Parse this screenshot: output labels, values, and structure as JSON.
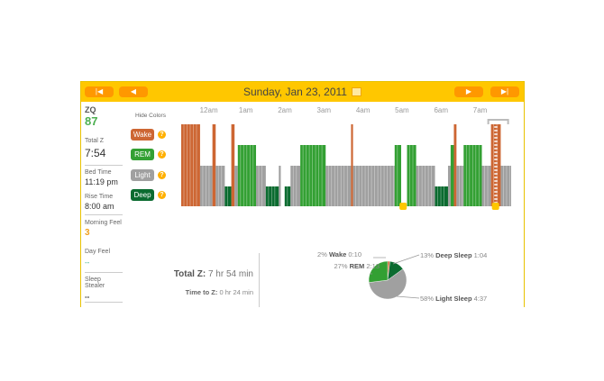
{
  "nav": {
    "first": "|◀",
    "prev": "◀",
    "next": "▶",
    "last": "▶|",
    "date": "Sunday, Jan 23, 2011"
  },
  "sidebar": {
    "zq_label": "ZQ",
    "zq": "87",
    "total_label": "Total Z",
    "total": "7:54",
    "bed_label": "Bed Time",
    "bed": "11:19 pm",
    "rise_label": "Rise Time",
    "rise": "8:00 am",
    "morning_label": "Morning Feel",
    "morning": "3",
    "day_label": "Day Feel",
    "day": "--",
    "stealer_label": "Sleep Stealer",
    "stealer": "--"
  },
  "legend": {
    "hide": "Hide Colors",
    "items": [
      {
        "label": "Wake",
        "color": "#cd6633"
      },
      {
        "label": "REM",
        "color": "#33a033"
      },
      {
        "label": "Light",
        "color": "#a0a0a0"
      },
      {
        "label": "Deep",
        "color": "#0b6b30"
      }
    ]
  },
  "chart_data": {
    "type": "hypnogram",
    "x_ticks": [
      "12am",
      "1am",
      "2am",
      "3am",
      "4am",
      "5am",
      "6am",
      "7am"
    ],
    "start": "11:19 pm",
    "segments": [
      [
        0,
        29,
        "wake"
      ],
      [
        29,
        48,
        "light"
      ],
      [
        48,
        53,
        "wake"
      ],
      [
        53,
        67,
        "light"
      ],
      [
        67,
        77,
        "deep"
      ],
      [
        77,
        82,
        "wake"
      ],
      [
        82,
        87,
        "light"
      ],
      [
        87,
        115,
        "rem"
      ],
      [
        115,
        130,
        "light"
      ],
      [
        130,
        150,
        "deep"
      ],
      [
        150,
        153,
        "light"
      ],
      [
        159,
        168,
        "deep"
      ],
      [
        168,
        183,
        "light"
      ],
      [
        183,
        222,
        "rem"
      ],
      [
        222,
        261,
        "light"
      ],
      [
        261,
        264,
        "wake"
      ],
      [
        264,
        328,
        "light"
      ],
      [
        328,
        338,
        "rem"
      ],
      [
        347,
        361,
        "rem"
      ],
      [
        361,
        390,
        "light"
      ],
      [
        390,
        410,
        "deep"
      ],
      [
        410,
        414,
        "light"
      ],
      [
        414,
        419,
        "rem"
      ],
      [
        419,
        423,
        "wake"
      ],
      [
        423,
        434,
        "light"
      ],
      [
        434,
        462,
        "rem"
      ],
      [
        462,
        476,
        "light"
      ],
      [
        476,
        491,
        "wake"
      ],
      [
        491,
        507,
        "light"
      ]
    ],
    "markers": [
      341,
      483
    ]
  },
  "summary": {
    "total_label": "Total Z:",
    "total": "7 hr 54 min",
    "ttz_label": "Time to Z:",
    "ttz": "0 hr 24 min"
  },
  "pie": {
    "slices": [
      {
        "pct": "2%",
        "name": "Wake",
        "time": "0:10",
        "value": 2,
        "color": "#cd6633"
      },
      {
        "pct": "13%",
        "name": "Deep Sleep",
        "time": "1:04",
        "value": 13,
        "color": "#0b6b30"
      },
      {
        "pct": "58%",
        "name": "Light Sleep",
        "time": "4:37",
        "value": 58,
        "color": "#a0a0a0"
      },
      {
        "pct": "27%",
        "name": "REM",
        "time": "2:13",
        "value": 27,
        "color": "#33a033"
      }
    ]
  }
}
